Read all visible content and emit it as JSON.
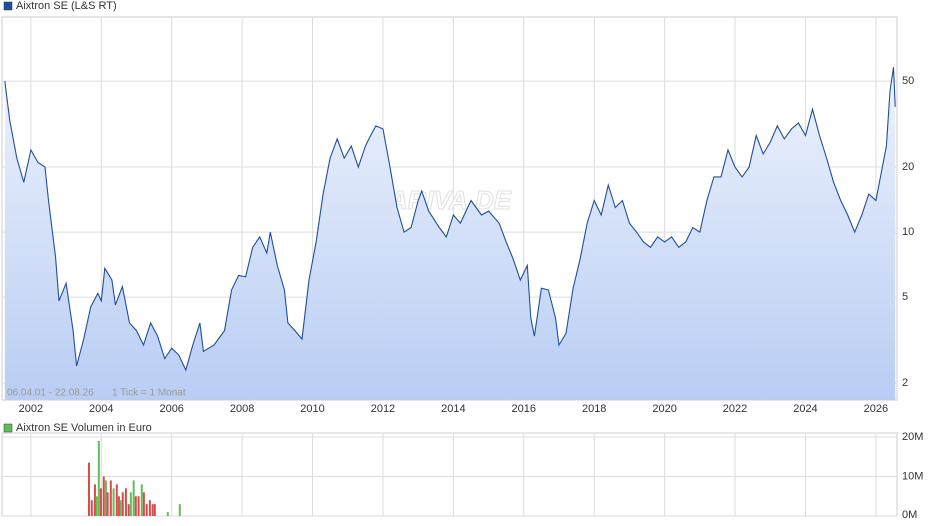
{
  "chart_data": [
    {
      "type": "line",
      "log_scale": true,
      "grid": true,
      "fill_area": true,
      "annotations": [
        "06.04.01 - 22.08.26",
        "1 Tick = 1 Monat"
      ],
      "watermark": "ARIVA.DE",
      "xlim": [
        2001.18,
        2026.6
      ],
      "xticks": [
        2002,
        2004,
        2006,
        2008,
        2010,
        2012,
        2014,
        2016,
        2018,
        2020,
        2022,
        2024,
        2026
      ],
      "ylim": [
        1.67,
        99
      ],
      "yticks": [
        2,
        5,
        10,
        20,
        50
      ],
      "series": [
        {
          "name": "Aixtron SE (L&S RT)",
          "color": "#1f4fa0",
          "x": [
            2001.26,
            2001.4,
            2001.6,
            2001.8,
            2002.0,
            2002.2,
            2002.4,
            2002.5,
            2002.7,
            2002.8,
            2003.0,
            2003.2,
            2003.3,
            2003.5,
            2003.7,
            2003.9,
            2004.0,
            2004.1,
            2004.3,
            2004.4,
            2004.6,
            2004.8,
            2005.0,
            2005.2,
            2005.4,
            2005.6,
            2005.8,
            2006.0,
            2006.2,
            2006.4,
            2006.6,
            2006.8,
            2006.9,
            2007.2,
            2007.5,
            2007.7,
            2007.9,
            2008.1,
            2008.3,
            2008.5,
            2008.7,
            2008.8,
            2009.0,
            2009.2,
            2009.3,
            2009.5,
            2009.7,
            2009.9,
            2010.1,
            2010.3,
            2010.5,
            2010.7,
            2010.9,
            2011.1,
            2011.3,
            2011.5,
            2011.6,
            2011.8,
            2012.0,
            2012.2,
            2012.4,
            2012.6,
            2012.8,
            2013.0,
            2013.1,
            2013.3,
            2013.6,
            2013.8,
            2014.0,
            2014.2,
            2014.5,
            2014.8,
            2015.0,
            2015.3,
            2015.5,
            2015.7,
            2015.9,
            2016.1,
            2016.2,
            2016.3,
            2016.5,
            2016.7,
            2016.9,
            2017.0,
            2017.2,
            2017.4,
            2017.6,
            2017.8,
            2018.0,
            2018.2,
            2018.4,
            2018.6,
            2018.8,
            2019.0,
            2019.2,
            2019.4,
            2019.6,
            2019.8,
            2020.0,
            2020.2,
            2020.4,
            2020.6,
            2020.8,
            2021.0,
            2021.2,
            2021.4,
            2021.6,
            2021.8,
            2022.0,
            2022.2,
            2022.4,
            2022.6,
            2022.8,
            2023.0,
            2023.2,
            2023.4,
            2023.6,
            2023.8,
            2024.0,
            2024.2,
            2024.4,
            2024.6,
            2024.8,
            2025.0,
            2025.2,
            2025.4,
            2025.6,
            2025.8,
            2026.0,
            2026.1,
            2026.3,
            2026.4,
            2026.5,
            2026.55
          ],
          "values": [
            50,
            33,
            22,
            17,
            24,
            21,
            20,
            14,
            7.7,
            4.8,
            5.8,
            3.5,
            2.4,
            3.2,
            4.5,
            5.2,
            4.8,
            6.8,
            6.0,
            4.6,
            5.6,
            3.8,
            3.5,
            3.0,
            3.8,
            3.3,
            2.6,
            2.9,
            2.7,
            2.3,
            3.0,
            3.8,
            2.8,
            3.0,
            3.5,
            5.4,
            6.3,
            6.2,
            8.5,
            9.5,
            8.0,
            10,
            7.0,
            5.4,
            3.8,
            3.5,
            3.2,
            6.0,
            9.0,
            15,
            22,
            27,
            22,
            25,
            20,
            25,
            27,
            31,
            30,
            20,
            13,
            10,
            10.5,
            14,
            15.5,
            12.5,
            10.5,
            9.5,
            12,
            11,
            14,
            12,
            12.5,
            11,
            9,
            7.5,
            6.0,
            7.0,
            4.0,
            3.3,
            5.5,
            5.4,
            4.0,
            3.0,
            3.4,
            5.5,
            7.5,
            11,
            14,
            12,
            16.5,
            13,
            14,
            11,
            10,
            9,
            8.5,
            9.5,
            9,
            9.5,
            8.5,
            9.0,
            10.5,
            10,
            14,
            18,
            18,
            24,
            20,
            18,
            20,
            28,
            23,
            26,
            31,
            27,
            30,
            32,
            28,
            37,
            28,
            22,
            17,
            14,
            12,
            10,
            12,
            15,
            14,
            17,
            25,
            45,
            58,
            38
          ]
        }
      ]
    },
    {
      "type": "bar",
      "grid": true,
      "xlim": [
        2001.18,
        2026.6
      ],
      "ylim": [
        0,
        21
      ],
      "yticks": [
        {
          "value": 0,
          "label": "0M"
        },
        {
          "value": 10,
          "label": "10M"
        },
        {
          "value": 20,
          "label": "20M"
        }
      ],
      "series": [
        {
          "name": "Aixtron SE Volumen in Euro",
          "color": "#5cbf5c",
          "x": [
            2003.65,
            2003.73,
            2003.82,
            2003.87,
            2003.93,
            2003.99,
            2004.07,
            2004.13,
            2004.18,
            2004.27,
            2004.35,
            2004.44,
            2004.5,
            2004.55,
            2004.61,
            2004.7,
            2004.78,
            2004.84,
            2004.92,
            2004.98,
            2005.06,
            2005.15,
            2005.21,
            2005.29,
            2005.38,
            2005.46,
            2005.52,
            2005.89,
            2006.23
          ],
          "values": [
            13.5,
            4,
            8,
            5,
            19,
            7,
            10,
            9,
            6,
            9,
            7,
            8,
            5,
            4,
            6,
            7,
            3,
            6,
            9,
            5,
            5,
            8,
            6,
            3,
            4,
            3,
            3,
            1,
            3
          ],
          "colors": [
            "#d94a4a",
            "#d94a4a",
            "#d94a4a",
            "#5cbf5c",
            "#5cbf5c",
            "#d94a4a",
            "#d94a4a",
            "#5cbf5c",
            "#d94a4a",
            "#d94a4a",
            "#5cbf5c",
            "#d94a4a",
            "#d94a4a",
            "#5cbf5c",
            "#d94a4a",
            "#d94a4a",
            "#d94a4a",
            "#5cbf5c",
            "#5cbf5c",
            "#d94a4a",
            "#d94a4a",
            "#5cbf5c",
            "#d94a4a",
            "#d94a4a",
            "#d94a4a",
            "#d94a4a",
            "#d94a4a",
            "#5cbf5c",
            "#5cbf5c"
          ]
        }
      ]
    }
  ]
}
